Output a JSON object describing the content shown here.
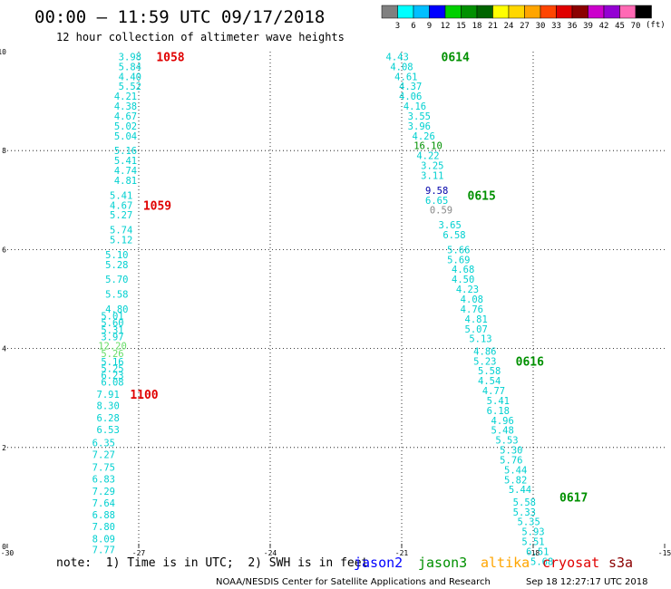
{
  "header": {
    "title": "00:00 – 11:59 UTC 09/17/2018",
    "subtitle": "12 hour collection of altimeter wave heights"
  },
  "color_scale": {
    "unit": "(ft)",
    "labels": [
      "3",
      "6",
      "9",
      "12",
      "15",
      "18",
      "21",
      "24",
      "27",
      "30",
      "33",
      "36",
      "39",
      "42",
      "45",
      "70"
    ],
    "colors": [
      "#808080",
      "#00ffff",
      "#00bfff",
      "#0000ff",
      "#00d000",
      "#009000",
      "#006400",
      "#ffff00",
      "#ffd700",
      "#ffa500",
      "#ff4500",
      "#e00000",
      "#8b0000",
      "#cc00cc",
      "#9400d3",
      "#ff69b4",
      "#000000"
    ]
  },
  "footer": {
    "note": "note:  1) Time is in UTC;  2) SWH is in feet",
    "satellites": [
      {
        "name": "jason2",
        "color": "#0000ff"
      },
      {
        "name": "jason3",
        "color": "#009000"
      },
      {
        "name": "altika",
        "color": "#ffa500"
      },
      {
        "name": "cryosat",
        "color": "#e00000"
      },
      {
        "name": "s3a",
        "color": "#8b0000"
      }
    ],
    "credit": "NOAA/NESDIS Center for Satellite Applications and Research",
    "timestamp": "Sep 18 12:27:17 UTC 2018"
  },
  "chart_data": {
    "type": "scatter",
    "xlim": [
      -30,
      -15
    ],
    "ylim": [
      0,
      10
    ],
    "xticks": [
      -30,
      -27,
      -24,
      -21,
      -18,
      -15
    ],
    "yticks": [
      0,
      2,
      4,
      6,
      8,
      10
    ],
    "grid": true,
    "tracks": [
      {
        "name": "west track",
        "points": [
          {
            "x": -27.2,
            "y": 9.9,
            "v": "3.98",
            "c": "#00d0d0"
          },
          {
            "x": -27.2,
            "y": 9.7,
            "v": "5.84",
            "c": "#00d0d0"
          },
          {
            "x": -27.2,
            "y": 9.5,
            "v": "4.40",
            "c": "#00d0d0"
          },
          {
            "x": -27.2,
            "y": 9.3,
            "v": "5.52",
            "c": "#00d0d0"
          },
          {
            "x": -27.3,
            "y": 9.1,
            "v": "4.21",
            "c": "#00d0d0"
          },
          {
            "x": -27.3,
            "y": 8.9,
            "v": "4.38",
            "c": "#00d0d0"
          },
          {
            "x": -27.3,
            "y": 8.7,
            "v": "4.67",
            "c": "#00d0d0"
          },
          {
            "x": -27.3,
            "y": 8.5,
            "v": "5.02",
            "c": "#00d0d0"
          },
          {
            "x": -27.3,
            "y": 8.3,
            "v": "5.04",
            "c": "#00d0d0"
          },
          {
            "x": -27.3,
            "y": 8.0,
            "v": "5.16",
            "c": "#00d0d0"
          },
          {
            "x": -27.3,
            "y": 7.8,
            "v": "5.41",
            "c": "#00d0d0"
          },
          {
            "x": -27.3,
            "y": 7.6,
            "v": "4.74",
            "c": "#00d0d0"
          },
          {
            "x": -27.3,
            "y": 7.4,
            "v": "4.81",
            "c": "#00d0d0"
          },
          {
            "x": -27.4,
            "y": 7.1,
            "v": "5.41",
            "c": "#00d0d0"
          },
          {
            "x": -27.4,
            "y": 6.9,
            "v": "4.67",
            "c": "#00d0d0"
          },
          {
            "x": -27.4,
            "y": 6.7,
            "v": "5.27",
            "c": "#00d0d0"
          },
          {
            "x": -27.4,
            "y": 6.4,
            "v": "5.74",
            "c": "#00d0d0"
          },
          {
            "x": -27.4,
            "y": 6.2,
            "v": "5.12",
            "c": "#00d0d0"
          },
          {
            "x": -27.5,
            "y": 5.9,
            "v": "5.10",
            "c": "#00d0d0"
          },
          {
            "x": -27.5,
            "y": 5.7,
            "v": "5.28",
            "c": "#00d0d0"
          },
          {
            "x": -27.5,
            "y": 5.4,
            "v": "5.70",
            "c": "#00d0d0"
          },
          {
            "x": -27.5,
            "y": 5.1,
            "v": "5.58",
            "c": "#00d0d0"
          },
          {
            "x": -27.5,
            "y": 4.8,
            "v": "4.80",
            "c": "#00d0d0"
          },
          {
            "x": -27.6,
            "y": 4.66,
            "v": "5.01",
            "c": "#00d0d0"
          },
          {
            "x": -27.6,
            "y": 4.52,
            "v": "5.60",
            "c": "#00d0d0"
          },
          {
            "x": -27.6,
            "y": 4.38,
            "v": "5.31",
            "c": "#00d0d0"
          },
          {
            "x": -27.6,
            "y": 4.24,
            "v": "3.97",
            "c": "#00d0d0"
          },
          {
            "x": -27.6,
            "y": 4.06,
            "v": "12.20",
            "c": "#66dd66"
          },
          {
            "x": -27.6,
            "y": 3.9,
            "v": "5.26",
            "c": "#66dd66"
          },
          {
            "x": -27.6,
            "y": 3.74,
            "v": "5.16",
            "c": "#00d0d0"
          },
          {
            "x": -27.6,
            "y": 3.6,
            "v": "5.25",
            "c": "#00d0d0"
          },
          {
            "x": -27.6,
            "y": 3.46,
            "v": "6.23",
            "c": "#00d0d0"
          },
          {
            "x": -27.6,
            "y": 3.32,
            "v": "6.08",
            "c": "#00d0d0"
          },
          {
            "x": -27.7,
            "y": 3.08,
            "v": "7.91",
            "c": "#00d0d0"
          },
          {
            "x": -27.7,
            "y": 2.85,
            "v": "8.30",
            "c": "#00d0d0"
          },
          {
            "x": -27.7,
            "y": 2.6,
            "v": "6.28",
            "c": "#00d0d0"
          },
          {
            "x": -27.7,
            "y": 2.36,
            "v": "6.53",
            "c": "#00d0d0"
          },
          {
            "x": -27.8,
            "y": 2.1,
            "v": "6.35",
            "c": "#00d0d0"
          },
          {
            "x": -27.8,
            "y": 1.86,
            "v": "7.27",
            "c": "#00d0d0"
          },
          {
            "x": -27.8,
            "y": 1.6,
            "v": "7.75",
            "c": "#00d0d0"
          },
          {
            "x": -27.8,
            "y": 1.36,
            "v": "6.83",
            "c": "#00d0d0"
          },
          {
            "x": -27.8,
            "y": 1.12,
            "v": "7.29",
            "c": "#00d0d0"
          },
          {
            "x": -27.8,
            "y": 0.88,
            "v": "7.64",
            "c": "#00d0d0"
          },
          {
            "x": -27.8,
            "y": 0.64,
            "v": "6.88",
            "c": "#00d0d0"
          },
          {
            "x": -27.8,
            "y": 0.4,
            "v": "7.80",
            "c": "#00d0d0"
          },
          {
            "x": -27.8,
            "y": 0.16,
            "v": "8.09",
            "c": "#00d0d0"
          },
          {
            "x": -27.8,
            "y": -0.06,
            "v": "7.77",
            "c": "#00d0d0"
          }
        ]
      },
      {
        "name": "east track",
        "points": [
          {
            "x": -21.1,
            "y": 9.9,
            "v": "4.43",
            "c": "#00d0d0"
          },
          {
            "x": -21.0,
            "y": 9.7,
            "v": "4.08",
            "c": "#00d0d0"
          },
          {
            "x": -20.9,
            "y": 9.5,
            "v": "4.61",
            "c": "#00d0d0"
          },
          {
            "x": -20.8,
            "y": 9.3,
            "v": "4.37",
            "c": "#00d0d0"
          },
          {
            "x": -20.8,
            "y": 9.1,
            "v": "4.06",
            "c": "#00d0d0"
          },
          {
            "x": -20.7,
            "y": 8.9,
            "v": "4.16",
            "c": "#00d0d0"
          },
          {
            "x": -20.6,
            "y": 8.7,
            "v": "3.55",
            "c": "#00d0d0"
          },
          {
            "x": -20.6,
            "y": 8.5,
            "v": "3.96",
            "c": "#00d0d0"
          },
          {
            "x": -20.5,
            "y": 8.3,
            "v": "4.26",
            "c": "#00d0d0"
          },
          {
            "x": -20.4,
            "y": 8.1,
            "v": "16.10",
            "c": "#009000"
          },
          {
            "x": -20.4,
            "y": 7.9,
            "v": "4.22",
            "c": "#00d0d0"
          },
          {
            "x": -20.3,
            "y": 7.7,
            "v": "3.25",
            "c": "#00d0d0"
          },
          {
            "x": -20.3,
            "y": 7.5,
            "v": "3.11",
            "c": "#00d0d0"
          },
          {
            "x": -20.2,
            "y": 7.2,
            "v": "9.58",
            "c": "#0000aa"
          },
          {
            "x": -20.2,
            "y": 7.0,
            "v": "6.65",
            "c": "#00d0d0"
          },
          {
            "x": -20.1,
            "y": 6.8,
            "v": "0.59",
            "c": "#888888"
          },
          {
            "x": -19.9,
            "y": 6.5,
            "v": "3.65",
            "c": "#00d0d0"
          },
          {
            "x": -19.8,
            "y": 6.3,
            "v": "6.58",
            "c": "#00d0d0"
          },
          {
            "x": -19.7,
            "y": 6.0,
            "v": "5.66",
            "c": "#00d0d0"
          },
          {
            "x": -19.7,
            "y": 5.8,
            "v": "5.69",
            "c": "#00d0d0"
          },
          {
            "x": -19.6,
            "y": 5.6,
            "v": "4.68",
            "c": "#00d0d0"
          },
          {
            "x": -19.6,
            "y": 5.4,
            "v": "4.50",
            "c": "#00d0d0"
          },
          {
            "x": -19.5,
            "y": 5.2,
            "v": "4.23",
            "c": "#00d0d0"
          },
          {
            "x": -19.4,
            "y": 5.0,
            "v": "4.08",
            "c": "#00d0d0"
          },
          {
            "x": -19.4,
            "y": 4.8,
            "v": "4.76",
            "c": "#00d0d0"
          },
          {
            "x": -19.3,
            "y": 4.6,
            "v": "4.81",
            "c": "#00d0d0"
          },
          {
            "x": -19.3,
            "y": 4.4,
            "v": "5.07",
            "c": "#00d0d0"
          },
          {
            "x": -19.2,
            "y": 4.2,
            "v": "5.13",
            "c": "#00d0d0"
          },
          {
            "x": -19.1,
            "y": 3.95,
            "v": "4.86",
            "c": "#00d0d0"
          },
          {
            "x": -19.1,
            "y": 3.75,
            "v": "5.23",
            "c": "#00d0d0"
          },
          {
            "x": -19.0,
            "y": 3.55,
            "v": "5.58",
            "c": "#00d0d0"
          },
          {
            "x": -19.0,
            "y": 3.35,
            "v": "4.54",
            "c": "#00d0d0"
          },
          {
            "x": -18.9,
            "y": 3.15,
            "v": "4.77",
            "c": "#00d0d0"
          },
          {
            "x": -18.8,
            "y": 2.95,
            "v": "5.41",
            "c": "#00d0d0"
          },
          {
            "x": -18.8,
            "y": 2.75,
            "v": "6.18",
            "c": "#00d0d0"
          },
          {
            "x": -18.7,
            "y": 2.55,
            "v": "4.96",
            "c": "#00d0d0"
          },
          {
            "x": -18.7,
            "y": 2.35,
            "v": "5.48",
            "c": "#00d0d0"
          },
          {
            "x": -18.6,
            "y": 2.15,
            "v": "5.53",
            "c": "#00d0d0"
          },
          {
            "x": -18.5,
            "y": 1.95,
            "v": "5.30",
            "c": "#00d0d0"
          },
          {
            "x": -18.5,
            "y": 1.75,
            "v": "5.76",
            "c": "#00d0d0"
          },
          {
            "x": -18.4,
            "y": 1.55,
            "v": "5.44",
            "c": "#00d0d0"
          },
          {
            "x": -18.4,
            "y": 1.35,
            "v": "5.82",
            "c": "#00d0d0"
          },
          {
            "x": -18.3,
            "y": 1.15,
            "v": "5.44",
            "c": "#00d0d0"
          },
          {
            "x": -18.2,
            "y": 0.9,
            "v": "5.58",
            "c": "#00d0d0"
          },
          {
            "x": -18.2,
            "y": 0.7,
            "v": "5.33",
            "c": "#00d0d0"
          },
          {
            "x": -18.1,
            "y": 0.5,
            "v": "5.35",
            "c": "#00d0d0"
          },
          {
            "x": -18.0,
            "y": 0.3,
            "v": "5.93",
            "c": "#00d0d0"
          },
          {
            "x": -18.0,
            "y": 0.1,
            "v": "5.51",
            "c": "#00d0d0"
          },
          {
            "x": -17.9,
            "y": -0.1,
            "v": "6.51",
            "c": "#00d0d0"
          },
          {
            "x": -17.8,
            "y": -0.3,
            "v": "5.68",
            "c": "#00d0d0"
          }
        ]
      }
    ],
    "time_labels": [
      {
        "text": "1058",
        "x": -26.6,
        "y": 9.9,
        "color": "#e00000"
      },
      {
        "text": "1059",
        "x": -26.9,
        "y": 6.9,
        "color": "#e00000"
      },
      {
        "text": "1100",
        "x": -27.2,
        "y": 3.08,
        "color": "#e00000"
      },
      {
        "text": "0614",
        "x": -20.1,
        "y": 9.9,
        "color": "#009000"
      },
      {
        "text": "0615",
        "x": -19.5,
        "y": 7.1,
        "color": "#009000"
      },
      {
        "text": "0616",
        "x": -18.4,
        "y": 3.75,
        "color": "#009000"
      },
      {
        "text": "0617",
        "x": -17.4,
        "y": 1.0,
        "color": "#009000"
      }
    ]
  }
}
